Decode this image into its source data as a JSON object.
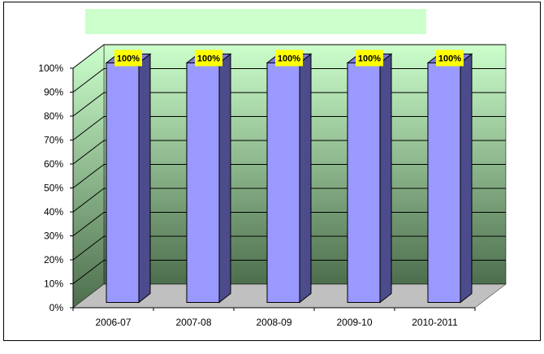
{
  "chart_data": {
    "type": "bar",
    "title": "",
    "xlabel": "",
    "ylabel": "",
    "categories": [
      "2006-07",
      "2007-08",
      "2008-09",
      "2009-10",
      "2010-2011"
    ],
    "values": [
      100,
      100,
      100,
      100,
      100
    ],
    "data_labels": [
      "100%",
      "100%",
      "100%",
      "100%",
      "100%"
    ],
    "ylim": [
      0,
      100
    ],
    "y_ticks": [
      "0%",
      "10%",
      "20%",
      "30%",
      "40%",
      "50%",
      "60%",
      "70%",
      "80%",
      "90%",
      "100%"
    ],
    "grid": true,
    "legend": "none",
    "three_d": true,
    "colors": {
      "bar_front": "#9999ff",
      "bar_side": "#4c4c8c",
      "bar_top": "#7a7ad6",
      "wall_top": "#ccffcc",
      "wall_bottom": "#4d6e4d",
      "floor": "#c0c0c0",
      "label_bg": "#ffff00",
      "title_box": "#ccffcc"
    }
  }
}
